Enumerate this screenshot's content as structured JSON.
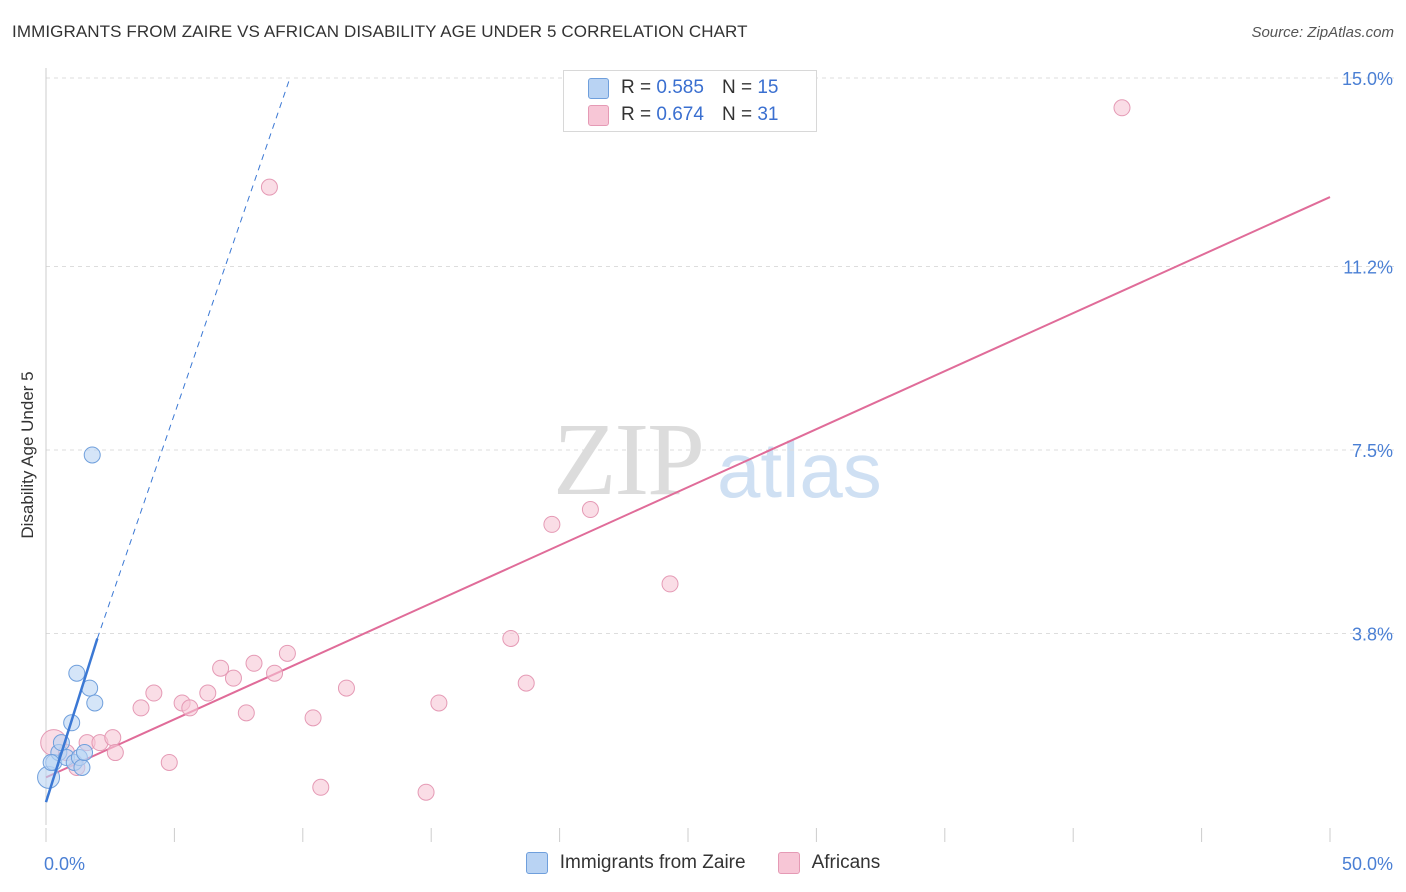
{
  "title": "IMMIGRANTS FROM ZAIRE VS AFRICAN DISABILITY AGE UNDER 5 CORRELATION CHART",
  "source": "Source: ZipAtlas.com",
  "watermark": {
    "zip": "ZIP",
    "atlas": "atlas"
  },
  "legend": {
    "zaire": {
      "r_label": "R =",
      "r_value": "0.585",
      "n_label": "N =",
      "n_value": "15"
    },
    "africans": {
      "r_label": "R =",
      "r_value": "0.674",
      "n_label": "N =",
      "n_value": "31"
    }
  },
  "bottom_legend": {
    "zaire": "Immigrants from Zaire",
    "africans": "Africans"
  },
  "colors": {
    "zaire_fill": "#b9d3f3",
    "zaire_stroke": "#6f9fdc",
    "zaire_line": "#3b78d4",
    "africans_fill": "#f7c6d6",
    "africans_stroke": "#e59ab5",
    "africans_line": "#e06c99",
    "grid": "#dddddd",
    "axis_text": "#4a7fd4"
  },
  "chart_data": {
    "type": "scatter",
    "title": "IMMIGRANTS FROM ZAIRE VS AFRICAN DISABILITY AGE UNDER 5 CORRELATION CHART",
    "xlabel": "",
    "ylabel": "Disability Age Under 5",
    "xlim": [
      0,
      50
    ],
    "ylim": [
      0,
      15
    ],
    "x_tick_labels": [
      "0.0%",
      "50.0%"
    ],
    "y_ticks": [
      3.8,
      7.5,
      11.2,
      15.0
    ],
    "y_tick_labels": [
      "3.8%",
      "7.5%",
      "11.2%",
      "15.0%"
    ],
    "grid": true,
    "legend_position": "top-center",
    "series": [
      {
        "name": "Immigrants from Zaire",
        "color": "#6f9fdc",
        "points": [
          [
            0.1,
            0.9
          ],
          [
            0.3,
            1.2
          ],
          [
            0.5,
            1.4
          ],
          [
            0.6,
            1.6
          ],
          [
            0.8,
            1.3
          ],
          [
            1.0,
            2.0
          ],
          [
            1.1,
            1.2
          ],
          [
            1.2,
            3.0
          ],
          [
            1.3,
            1.3
          ],
          [
            1.4,
            1.1
          ],
          [
            1.5,
            1.4
          ],
          [
            1.7,
            2.7
          ],
          [
            1.8,
            7.4
          ],
          [
            1.9,
            2.4
          ],
          [
            0.2,
            1.2
          ]
        ],
        "trend": {
          "x": [
            0.0,
            2.0
          ],
          "y": [
            0.4,
            3.7
          ],
          "extended_x": [
            2.0,
            9.5
          ],
          "extended_y": [
            3.7,
            15.0
          ]
        }
      },
      {
        "name": "Africans",
        "color": "#e59ab5",
        "points": [
          [
            0.3,
            1.6
          ],
          [
            0.8,
            1.4
          ],
          [
            1.2,
            1.1
          ],
          [
            1.6,
            1.6
          ],
          [
            2.1,
            1.6
          ],
          [
            2.6,
            1.7
          ],
          [
            2.7,
            1.4
          ],
          [
            3.7,
            2.3
          ],
          [
            4.2,
            2.6
          ],
          [
            4.8,
            1.2
          ],
          [
            5.3,
            2.4
          ],
          [
            5.6,
            2.3
          ],
          [
            6.3,
            2.6
          ],
          [
            6.8,
            3.1
          ],
          [
            7.3,
            2.9
          ],
          [
            7.8,
            2.2
          ],
          [
            8.1,
            3.2
          ],
          [
            8.9,
            3.0
          ],
          [
            9.4,
            3.4
          ],
          [
            8.7,
            12.8
          ],
          [
            10.4,
            2.1
          ],
          [
            10.7,
            0.7
          ],
          [
            11.7,
            2.7
          ],
          [
            14.8,
            0.6
          ],
          [
            15.3,
            2.4
          ],
          [
            18.1,
            3.7
          ],
          [
            18.7,
            2.8
          ],
          [
            19.7,
            6.0
          ],
          [
            21.2,
            6.3
          ],
          [
            24.3,
            4.8
          ],
          [
            41.9,
            14.4
          ]
        ],
        "trend": {
          "x": [
            0.0,
            50.0
          ],
          "y": [
            0.9,
            12.6
          ]
        }
      }
    ]
  }
}
